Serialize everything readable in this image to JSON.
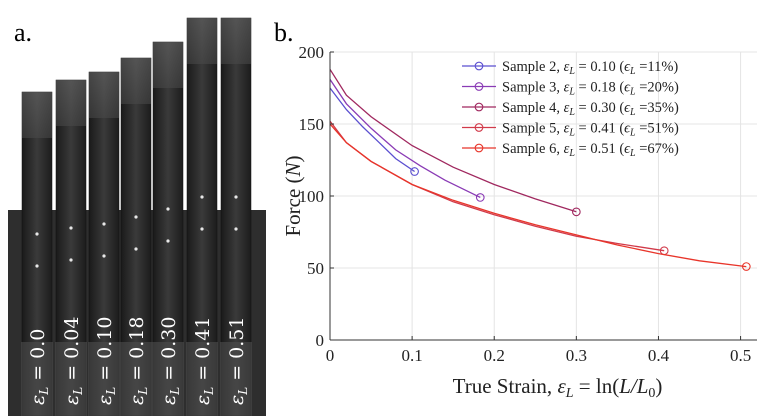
{
  "panel_labels": {
    "a": "a.",
    "b": "b."
  },
  "photo": {
    "strain_labels": [
      "ε_L = 0.0",
      "ε_L = 0.04",
      "ε_L = 0.10",
      "ε_L = 0.18",
      "ε_L = 0.30",
      "ε_L = 0.41",
      "ε_L = 0.51"
    ],
    "strain_label_parts": [
      {
        "sym": "ε",
        "sub": "L",
        "rest": " = 0.0"
      },
      {
        "sym": "ε",
        "sub": "L",
        "rest": " = 0.04"
      },
      {
        "sym": "ε",
        "sub": "L",
        "rest": " = 0.10"
      },
      {
        "sym": "ε",
        "sub": "L",
        "rest": " = 0.18"
      },
      {
        "sym": "ε",
        "sub": "L",
        "rest": " = 0.30"
      },
      {
        "sym": "ε",
        "sub": "L",
        "rest": " = 0.41"
      },
      {
        "sym": "ε",
        "sub": "L",
        "rest": " = 0.51"
      }
    ]
  },
  "chart_data": {
    "type": "line",
    "xlabel": "True Strain, ε_L = ln(L/L_0)",
    "ylabel": "Force (N)",
    "xlim": [
      0,
      0.52
    ],
    "ylim": [
      0,
      200
    ],
    "xticks": [
      0,
      0.1,
      0.2,
      0.3,
      0.4,
      0.5
    ],
    "yticks": [
      0,
      50,
      100,
      150,
      200
    ],
    "xtick_labels": [
      "0",
      "0.1",
      "0.2",
      "0.3",
      "0.4",
      "0.5"
    ],
    "ytick_labels": [
      "0",
      "50",
      "100",
      "150",
      "200"
    ],
    "grid": true,
    "legend_position": "top-right",
    "series": [
      {
        "name": "Sample 2, ε_L = 0.10 (ϵ_L =11%)",
        "color": "#5b4fd0",
        "x": [
          0,
          0.02,
          0.04,
          0.06,
          0.08,
          0.103
        ],
        "y": [
          175,
          160,
          148,
          137,
          126,
          117
        ],
        "end_marker": [
          0.103,
          117
        ]
      },
      {
        "name": "Sample 3, ε_L = 0.18 (ϵ_L =20%)",
        "color": "#8a3bb5",
        "x": [
          0,
          0.02,
          0.05,
          0.08,
          0.11,
          0.14,
          0.183
        ],
        "y": [
          181,
          164,
          147,
          132,
          121,
          111,
          99
        ],
        "end_marker": [
          0.183,
          99
        ]
      },
      {
        "name": "Sample 4, ε_L = 0.30 (ϵ_L =35%)",
        "color": "#a0285f",
        "x": [
          0,
          0.02,
          0.05,
          0.1,
          0.15,
          0.2,
          0.25,
          0.3
        ],
        "y": [
          188,
          170,
          155,
          135,
          120,
          108,
          98,
          89
        ],
        "end_marker": [
          0.3,
          89
        ]
      },
      {
        "name": "Sample 5, ε_L = 0.41 (ϵ_L =51%)",
        "color": "#d13a4a",
        "x": [
          0,
          0.02,
          0.05,
          0.1,
          0.15,
          0.2,
          0.25,
          0.3,
          0.35,
          0.407
        ],
        "y": [
          152,
          137,
          124,
          108,
          96,
          87,
          79,
          72,
          67,
          62
        ],
        "end_marker": [
          0.407,
          62
        ]
      },
      {
        "name": "Sample 6, ε_L = 0.51 (ϵ_L =67%)",
        "color": "#e8352a",
        "x": [
          0,
          0.02,
          0.05,
          0.1,
          0.15,
          0.2,
          0.25,
          0.3,
          0.35,
          0.4,
          0.45,
          0.507
        ],
        "y": [
          150,
          137,
          124,
          108,
          97,
          88,
          80,
          73,
          66,
          60,
          55,
          51
        ],
        "end_marker": [
          0.507,
          51
        ]
      }
    ]
  }
}
